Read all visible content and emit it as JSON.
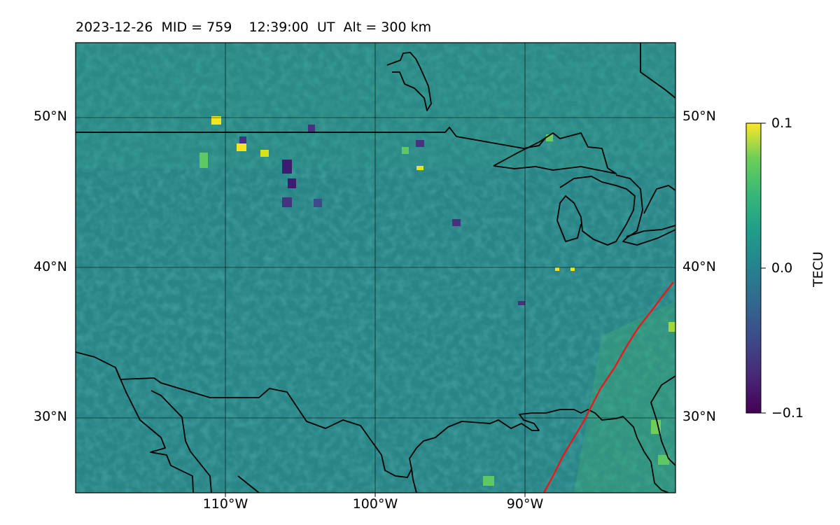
{
  "title": "2023-12-26  MID = 759    12:39:00  UT  Alt = 300 km",
  "map": {
    "lat_labels": [
      {
        "lat": 50,
        "label": "50°N"
      },
      {
        "lat": 40,
        "label": "40°N"
      },
      {
        "lat": 30,
        "label": "30°N"
      }
    ],
    "lon_labels": [
      {
        "lon": -110,
        "label": "110°W"
      },
      {
        "lon": -100,
        "label": "100°W"
      },
      {
        "lon": -90,
        "label": "90°W"
      }
    ],
    "extent": {
      "lon_min": -120,
      "lon_max": -80,
      "lat_min": 25,
      "lat_max": 55
    }
  },
  "colorbar": {
    "label": "TECU",
    "ticks": [
      {
        "value": 0.1,
        "label": "0.1"
      },
      {
        "value": 0.0,
        "label": "0.0"
      },
      {
        "value": -0.1,
        "label": "−0.1"
      }
    ],
    "colormap": "viridis",
    "vmin": -0.1,
    "vmax": 0.1
  },
  "colors": {
    "background_field": "#2a8a85",
    "coastline": "#000000",
    "terminator_line": "#e8191a"
  }
}
